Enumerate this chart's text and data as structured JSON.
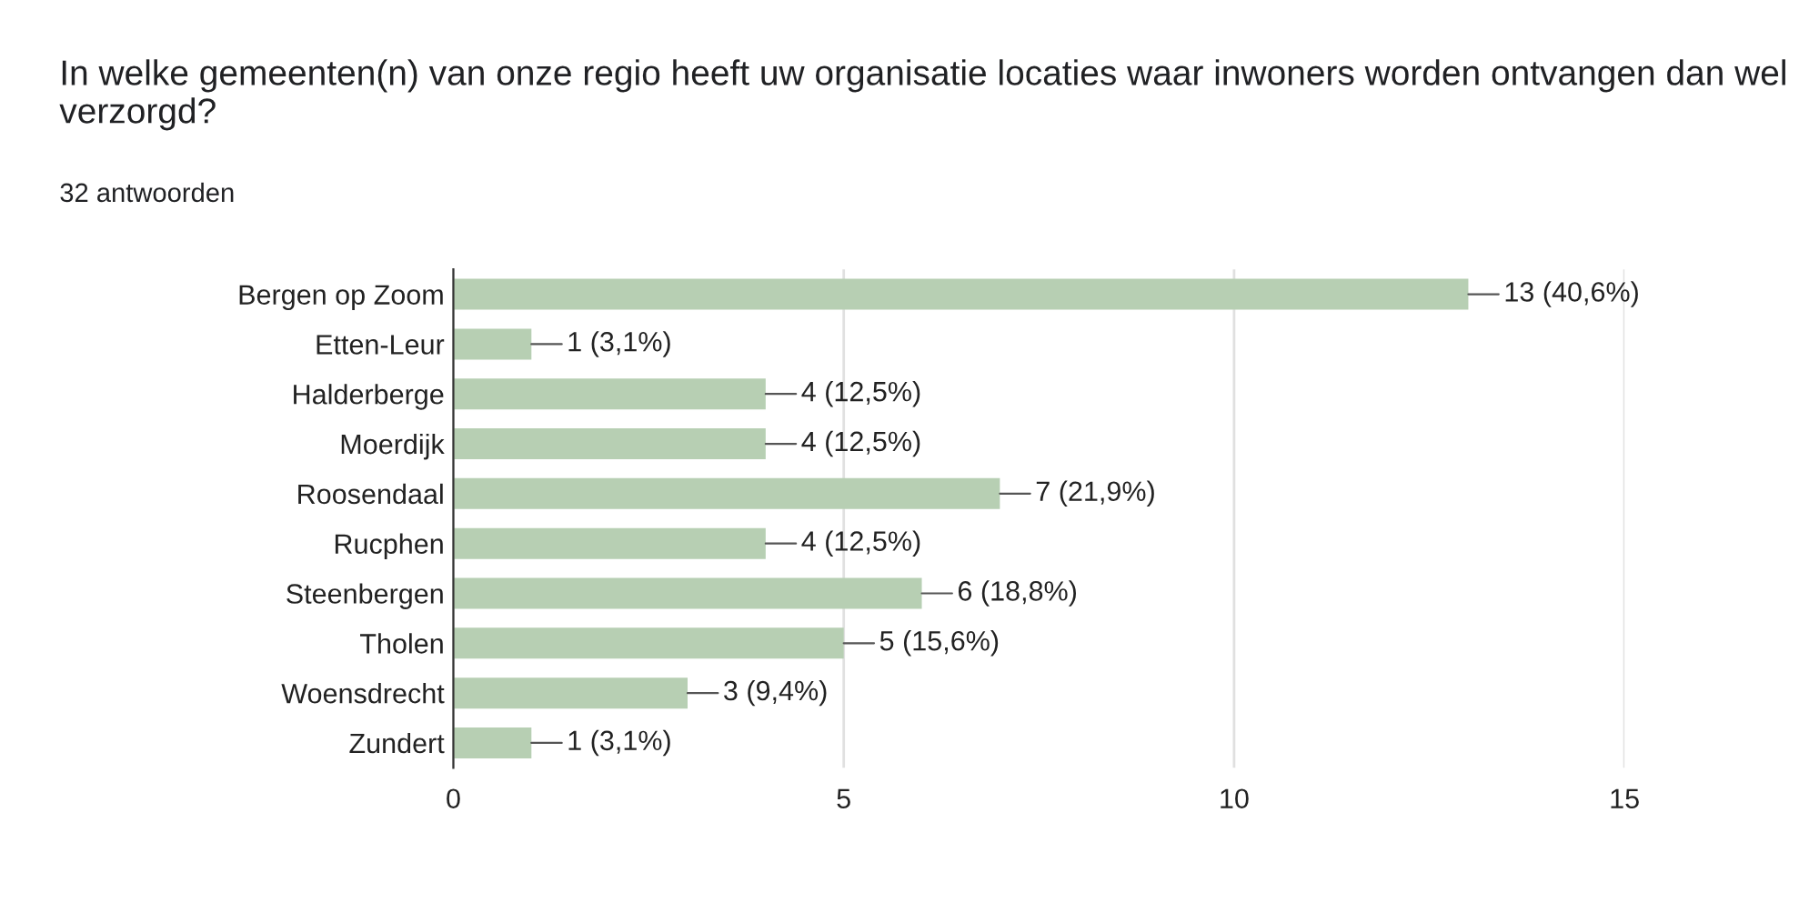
{
  "chart_data": {
    "type": "bar",
    "orientation": "horizontal",
    "title": "In welke gemeenten(n) van onze regio heeft uw organisatie locaties waar inwoners worden ontvangen dan wel verzorgd?",
    "subtitle": "32 antwoorden",
    "categories": [
      "Bergen op Zoom",
      "Etten-Leur",
      "Halderberge",
      "Moerdijk",
      "Roosendaal",
      "Rucphen",
      "Steenbergen",
      "Tholen",
      "Woensdrecht",
      "Zundert"
    ],
    "values": [
      13,
      1,
      4,
      4,
      7,
      4,
      6,
      5,
      3,
      1
    ],
    "value_labels": [
      "13 (40,6%)",
      "1 (3,1%)",
      "4 (12,5%)",
      "4 (12,5%)",
      "7 (21,9%)",
      "4 (12,5%)",
      "6 (18,8%)",
      "5 (15,6%)",
      "3 (9,4%)",
      "1 (3,1%)"
    ],
    "color": "#b7cfb3",
    "xlim": [
      0,
      15
    ],
    "xticks": [
      0,
      5,
      10,
      15
    ],
    "grid": "x"
  }
}
